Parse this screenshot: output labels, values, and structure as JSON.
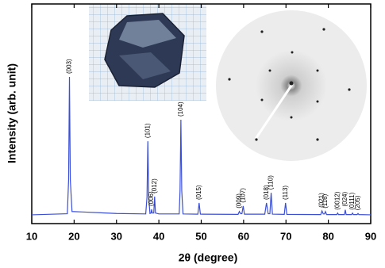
{
  "chart_data": {
    "type": "line",
    "x_label": "2θ (degree)",
    "y_label": "Intensity (arb. unit)",
    "xlim": [
      10,
      90
    ],
    "xticks": [
      10,
      20,
      30,
      40,
      50,
      60,
      70,
      80,
      90
    ],
    "ylim": [
      0,
      100
    ],
    "series": [
      {
        "color": "#3a4fd6",
        "x": [
          10,
          18.4,
          18.7,
          18.9,
          19.1,
          19.5,
          22,
          30,
          36.9,
          37.2,
          37.4,
          37.6,
          37.9,
          38.15,
          38.3,
          38.45,
          38.8,
          39.0,
          39.2,
          40,
          44.8,
          45.0,
          45.2,
          45.4,
          45.7,
          49.2,
          49.5,
          49.8,
          58.7,
          59.0,
          59.3,
          59.6,
          59.9,
          60.2,
          65.0,
          65.4,
          65.8,
          66.2,
          66.5,
          66.8,
          69.6,
          69.9,
          70.2,
          78.2,
          78.5,
          78.8,
          79.1,
          79.3,
          79.6,
          82.0,
          82.2,
          82.4,
          83.8,
          84.0,
          84.2,
          85.5,
          85.7,
          85.9,
          86.8,
          87.0,
          87.2,
          90
        ],
        "values": [
          4,
          4.5,
          20,
          66.8,
          20,
          5.5,
          5.3,
          4.6,
          4.4,
          12,
          37.5,
          12,
          4.6,
          4.8,
          6.5,
          4.8,
          4.8,
          12.3,
          4.8,
          4.4,
          4.4,
          15,
          47.3,
          15,
          4.4,
          4.3,
          9.4,
          4.3,
          4.2,
          5.5,
          4.5,
          4.5,
          8,
          4.3,
          4.3,
          9.4,
          4.5,
          4.5,
          14,
          4.3,
          4.2,
          9.4,
          4.2,
          4.1,
          5.8,
          4.4,
          4.4,
          5.5,
          4.1,
          4.1,
          4.8,
          4.1,
          4.1,
          6.3,
          4.1,
          4.1,
          4.8,
          4.1,
          4.1,
          4.6,
          4.1,
          4.0
        ]
      }
    ],
    "peak_labels": [
      {
        "label": "(003)",
        "x": 18.9
      },
      {
        "label": "(101)",
        "x": 37.4
      },
      {
        "label": "(006)",
        "x": 38.3
      },
      {
        "label": "(012)",
        "x": 39.0
      },
      {
        "label": "(104)",
        "x": 45.2
      },
      {
        "label": "(015)",
        "x": 49.5
      },
      {
        "label": "(009)",
        "x": 59.0
      },
      {
        "label": "(107)",
        "x": 59.9
      },
      {
        "label": "(018)",
        "x": 65.4
      },
      {
        "label": "(110)",
        "x": 66.5
      },
      {
        "label": "(113)",
        "x": 69.9
      },
      {
        "label": "(021)",
        "x": 78.5
      },
      {
        "label": "(116)",
        "x": 79.3
      },
      {
        "label": "(0012)",
        "x": 82.2
      },
      {
        "label": "(024)",
        "x": 84.0
      },
      {
        "label": "(0111)",
        "x": 85.7
      },
      {
        "label": "(205)",
        "x": 87.0
      }
    ]
  }
}
